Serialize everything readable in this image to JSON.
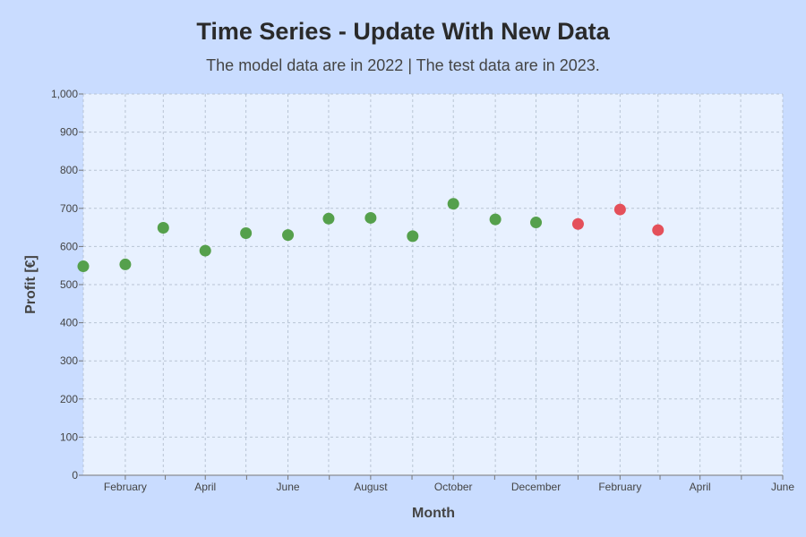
{
  "chart_data": {
    "type": "scatter",
    "title": "Time Series - Update With New Data",
    "subtitle": "The model data are in 2022 | The test data are in 2023.",
    "xlabel": "Month",
    "ylabel": "Profit [€]",
    "ylim": [
      0,
      1000
    ],
    "xlim": [
      "2022-01-01",
      "2023-06-01"
    ],
    "grid": true,
    "y_ticks": [
      "0",
      "100",
      "200",
      "300",
      "400",
      "500",
      "600",
      "700",
      "800",
      "900",
      "1,000"
    ],
    "x_ticks": [
      {
        "date": "2022-02-01",
        "label": "February"
      },
      {
        "date": "2022-04-01",
        "label": "April"
      },
      {
        "date": "2022-06-01",
        "label": "June"
      },
      {
        "date": "2022-08-01",
        "label": "August"
      },
      {
        "date": "2022-10-01",
        "label": "October"
      },
      {
        "date": "2022-12-01",
        "label": "December"
      },
      {
        "date": "2023-02-01",
        "label": "February"
      },
      {
        "date": "2023-04-01",
        "label": "April"
      },
      {
        "date": "2023-06-01",
        "label": "June"
      }
    ],
    "series": [
      {
        "color": "#55a04c",
        "x": [
          "2022-01-01",
          "2022-02-01",
          "2022-03-01",
          "2022-04-01",
          "2022-05-01",
          "2022-06-01",
          "2022-07-01",
          "2022-08-01",
          "2022-09-01",
          "2022-10-01",
          "2022-11-01",
          "2022-12-01"
        ],
        "y": [
          548,
          553,
          649,
          589,
          635,
          630,
          673,
          675,
          627,
          712,
          671,
          663
        ]
      },
      {
        "color": "#e4505a",
        "x": [
          "2023-01-01",
          "2023-02-01",
          "2023-03-01"
        ],
        "y": [
          659,
          697,
          643
        ]
      }
    ]
  }
}
